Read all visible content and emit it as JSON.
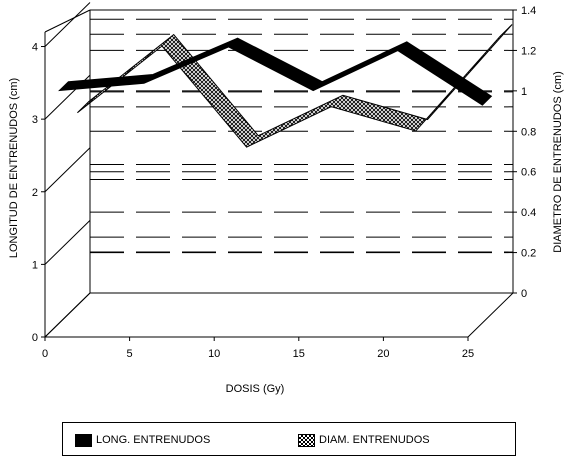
{
  "chart_data": {
    "type": "line",
    "title": "",
    "xlabel": "DOSIS (Gy)",
    "ylabel": "LONGITUD DE ENTRENUDOS (cm)",
    "y2label": "DIAMETRO DE ENTRENUDOS (cm)",
    "x_ticks": [
      "0",
      "5",
      "10",
      "15",
      "20",
      "25"
    ],
    "y_ticks": [
      "0",
      "1",
      "2",
      "3",
      "4"
    ],
    "y2_ticks": [
      "0",
      "0.2",
      "0.4",
      "0.6",
      "0.8",
      "1",
      "1.2",
      "1.4"
    ],
    "xlim": [
      0,
      25
    ],
    "ylim": [
      0,
      4.2
    ],
    "y2lim": [
      0,
      1.4
    ],
    "grid": true,
    "legend_position": "bottom",
    "series": [
      {
        "name": "LONG. ENTRENUDOS",
        "axis": "left",
        "x": [
          0,
          5,
          10,
          15,
          20,
          25
        ],
        "values": [
          3.2,
          3.3,
          3.8,
          3.2,
          3.75,
          3.0
        ],
        "color": "#000000",
        "pattern": "solid"
      },
      {
        "name": "DIAM. ENTRENUDOS",
        "axis": "right",
        "x": [
          0,
          5,
          10,
          15,
          20,
          25
        ],
        "values": [
          0.92,
          1.25,
          0.75,
          0.95,
          0.83,
          1.3
        ],
        "color": "#000000",
        "pattern": "crosshatch"
      }
    ]
  }
}
